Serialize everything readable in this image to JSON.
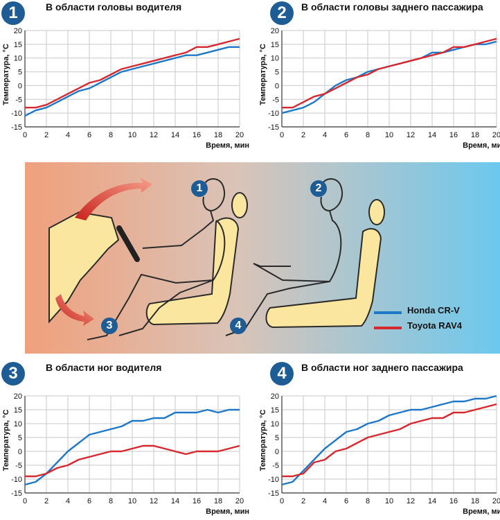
{
  "colors": {
    "honda": "#1e78c8",
    "toyota": "#d7282f",
    "badge": "#1d5c95"
  },
  "legend": [
    {
      "name": "Honda CR-V",
      "color": "#1e78c8"
    },
    {
      "name": "Toyota RAV4",
      "color": "#d7282f"
    }
  ],
  "illustration": {
    "markers": [
      "1",
      "2",
      "3",
      "4"
    ]
  },
  "chart_data": [
    {
      "type": "line",
      "badge": "1",
      "title": "В области головы водителя",
      "xlabel": "Время, мин",
      "ylabel": "Температура, °С",
      "xlim": [
        0,
        20
      ],
      "ylim": [
        -15,
        20
      ],
      "xticks": [
        "0",
        "2",
        "4",
        "6",
        "8",
        "10",
        "12",
        "14",
        "16",
        "18",
        "20"
      ],
      "yticks": [
        "20",
        "15",
        "10",
        "5",
        "0",
        "-5",
        "-10",
        "-15"
      ],
      "grid": true,
      "series": [
        {
          "name": "Honda CR-V",
          "color": "#1e78c8",
          "x": [
            0,
            1,
            2,
            3,
            4,
            5,
            6,
            7,
            8,
            9,
            10,
            11,
            12,
            13,
            14,
            15,
            16,
            17,
            18,
            19,
            20
          ],
          "y": [
            -11,
            -9,
            -8,
            -6,
            -4,
            -2,
            -1,
            1,
            3,
            5,
            6,
            7,
            8,
            9,
            10,
            11,
            11,
            12,
            13,
            14,
            14
          ]
        },
        {
          "name": "Toyota RAV4",
          "color": "#d7282f",
          "x": [
            0,
            1,
            2,
            3,
            4,
            5,
            6,
            7,
            8,
            9,
            10,
            11,
            12,
            13,
            14,
            15,
            16,
            17,
            18,
            19,
            20
          ],
          "y": [
            -8,
            -8,
            -7,
            -5,
            -3,
            -1,
            1,
            2,
            4,
            6,
            7,
            8,
            9,
            10,
            11,
            12,
            14,
            14,
            15,
            16,
            17
          ]
        }
      ]
    },
    {
      "type": "line",
      "badge": "2",
      "title": "В области головы заднего пассажира",
      "xlabel": "Время, мин",
      "ylabel": "Температура, °С",
      "xlim": [
        0,
        20
      ],
      "ylim": [
        -15,
        20
      ],
      "xticks": [
        "0",
        "2",
        "4",
        "6",
        "8",
        "10",
        "12",
        "14",
        "16",
        "18",
        "20"
      ],
      "yticks": [
        "20",
        "15",
        "10",
        "5",
        "0",
        "-5",
        "-10",
        "-15"
      ],
      "grid": true,
      "series": [
        {
          "name": "Honda CR-V",
          "color": "#1e78c8",
          "x": [
            0,
            1,
            2,
            3,
            4,
            5,
            6,
            7,
            8,
            9,
            10,
            11,
            12,
            13,
            14,
            15,
            16,
            17,
            18,
            19,
            20
          ],
          "y": [
            -10,
            -9,
            -8,
            -6,
            -3,
            0,
            2,
            3,
            5,
            6,
            7,
            8,
            9,
            10,
            12,
            12,
            13,
            14,
            15,
            15,
            16
          ]
        },
        {
          "name": "Toyota RAV4",
          "color": "#d7282f",
          "x": [
            0,
            1,
            2,
            3,
            4,
            5,
            6,
            7,
            8,
            9,
            10,
            11,
            12,
            13,
            14,
            15,
            16,
            17,
            18,
            19,
            20
          ],
          "y": [
            -8,
            -8,
            -6,
            -4,
            -3,
            -1,
            1,
            3,
            4,
            6,
            7,
            8,
            9,
            10,
            11,
            12,
            14,
            14,
            15,
            16,
            17
          ]
        }
      ]
    },
    {
      "type": "line",
      "badge": "3",
      "title": "В области ног водителя",
      "xlabel": "Время, мин",
      "ylabel": "Температура, °С",
      "xlim": [
        0,
        20
      ],
      "ylim": [
        -15,
        20
      ],
      "xticks": [
        "0",
        "2",
        "4",
        "6",
        "8",
        "10",
        "12",
        "14",
        "16",
        "18",
        "20"
      ],
      "yticks": [
        "20",
        "15",
        "10",
        "5",
        "0",
        "-5",
        "-10",
        "-15"
      ],
      "grid": true,
      "series": [
        {
          "name": "Honda CR-V",
          "color": "#1e78c8",
          "x": [
            0,
            1,
            2,
            3,
            4,
            5,
            6,
            7,
            8,
            9,
            10,
            11,
            12,
            13,
            14,
            15,
            16,
            17,
            18,
            19,
            20
          ],
          "y": [
            -12,
            -11,
            -8,
            -4,
            0,
            3,
            6,
            7,
            8,
            9,
            11,
            11,
            12,
            12,
            14,
            14,
            14,
            15,
            14,
            15,
            15
          ]
        },
        {
          "name": "Toyota RAV4",
          "color": "#d7282f",
          "x": [
            0,
            1,
            2,
            3,
            4,
            5,
            6,
            7,
            8,
            9,
            10,
            11,
            12,
            13,
            14,
            15,
            16,
            17,
            18,
            19,
            20
          ],
          "y": [
            -9,
            -9,
            -8,
            -6,
            -5,
            -3,
            -2,
            -1,
            0,
            0,
            1,
            2,
            2,
            1,
            0,
            -1,
            0,
            0,
            0,
            1,
            2
          ]
        }
      ]
    },
    {
      "type": "line",
      "badge": "4",
      "title": "В области ног заднего пассажира",
      "xlabel": "Время, мин",
      "ylabel": "Температура, °С",
      "xlim": [
        0,
        20
      ],
      "ylim": [
        -15,
        20
      ],
      "xticks": [
        "0",
        "2",
        "4",
        "6",
        "8",
        "10",
        "12",
        "14",
        "16",
        "18",
        "20"
      ],
      "yticks": [
        "20",
        "15",
        "10",
        "5",
        "0",
        "-5",
        "-10",
        "-15"
      ],
      "grid": true,
      "series": [
        {
          "name": "Honda CR-V",
          "color": "#1e78c8",
          "x": [
            0,
            1,
            2,
            3,
            4,
            5,
            6,
            7,
            8,
            9,
            10,
            11,
            12,
            13,
            14,
            15,
            16,
            17,
            18,
            19,
            20
          ],
          "y": [
            -12,
            -11,
            -7,
            -3,
            1,
            4,
            7,
            8,
            10,
            11,
            13,
            14,
            15,
            15,
            16,
            17,
            18,
            18,
            19,
            19,
            20
          ]
        },
        {
          "name": "Toyota RAV4",
          "color": "#d7282f",
          "x": [
            0,
            1,
            2,
            3,
            4,
            5,
            6,
            7,
            8,
            9,
            10,
            11,
            12,
            13,
            14,
            15,
            16,
            17,
            18,
            19,
            20
          ],
          "y": [
            -9,
            -9,
            -8,
            -4,
            -3,
            0,
            1,
            3,
            5,
            6,
            7,
            8,
            10,
            11,
            12,
            12,
            14,
            14,
            15,
            16,
            17
          ]
        }
      ]
    }
  ]
}
